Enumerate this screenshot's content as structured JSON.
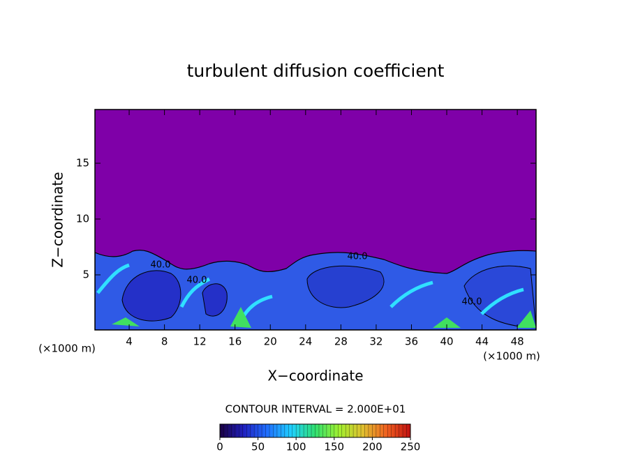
{
  "chart_data": {
    "type": "contour",
    "title": "turbulent diffusion coefficient",
    "xlabel": "X−coordinate",
    "ylabel": "Z−coordinate",
    "x_unit": "(×1000 m)",
    "y_unit": "(×1000 m)",
    "xlim": [
      0,
      50
    ],
    "ylim": [
      0,
      20
    ],
    "xticks": [
      4,
      8,
      12,
      16,
      20,
      24,
      28,
      32,
      36,
      40,
      44,
      48
    ],
    "yticks": [
      5,
      10,
      15
    ],
    "background_color": "#7f00a8",
    "contour_labels": [
      "40.0",
      "40.0",
      "40.0",
      "40.0"
    ],
    "colorbar": {
      "label": "CONTOUR INTERVAL = 2.000E+01",
      "lim": [
        0,
        250
      ],
      "ticks": [
        0,
        50,
        100,
        150,
        200,
        250
      ],
      "colors": [
        "#1a0040",
        "#2020c0",
        "#2070ff",
        "#20d0ff",
        "#30e070",
        "#a0f030",
        "#e0c030",
        "#f06020",
        "#c01010"
      ]
    }
  }
}
